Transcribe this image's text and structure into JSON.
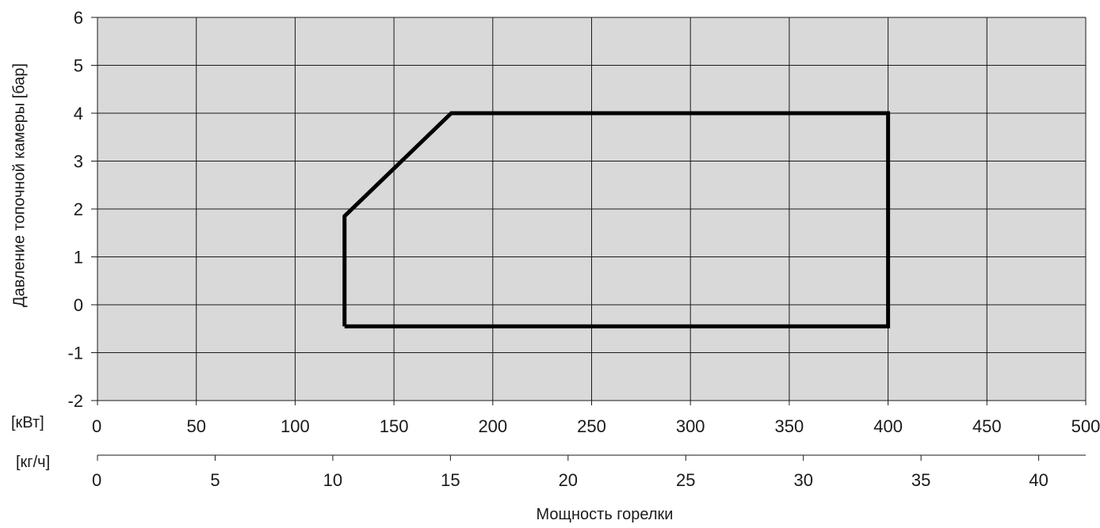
{
  "chart_data": {
    "type": "area",
    "ylabel": "Давление топочной камеры [бар]",
    "xlabel": "Мощность горелки",
    "y_axis": {
      "ticks": [
        6,
        5,
        4,
        3,
        2,
        1,
        0,
        -1,
        -2
      ],
      "ylim": [
        -2,
        6
      ]
    },
    "x_axis_primary": {
      "unit_label": "[кВт]",
      "ticks": [
        0,
        50,
        100,
        150,
        200,
        250,
        300,
        350,
        400,
        450,
        500
      ],
      "xlim": [
        0,
        500
      ]
    },
    "x_axis_secondary": {
      "unit_label": "[кг/ч]",
      "ticks": [
        0,
        5,
        10,
        15,
        20,
        25,
        30,
        35,
        40
      ],
      "xlim": [
        0,
        42
      ]
    },
    "grid": true,
    "series": [
      {
        "outline": [
          [
            125,
            -0.45
          ],
          [
            125,
            1.85
          ],
          [
            179,
            4.0
          ],
          [
            400,
            4.0
          ],
          [
            400,
            -0.45
          ],
          [
            125,
            -0.45
          ]
        ]
      }
    ],
    "colors": {
      "plot_background": "#d9d9d9",
      "grid": "#1a1a1a",
      "outline": "#000000"
    }
  }
}
